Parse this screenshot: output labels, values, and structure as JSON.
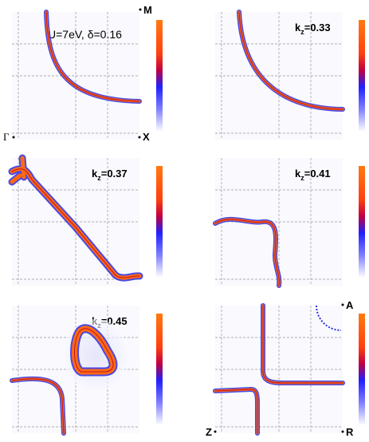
{
  "panels": [
    {
      "label": "U=7eV, δ=0.16"
    },
    {
      "label": {
        "main": "k",
        "sub": "z",
        "rest": "=0.33"
      }
    },
    {
      "label": {
        "main": "k",
        "sub": "z",
        "rest": "=0.37"
      }
    },
    {
      "label": {
        "main": "k",
        "sub": "z",
        "rest": "=0.41"
      }
    },
    {
      "label": {
        "main": "k",
        "sub": "z",
        "rest": "=0.45"
      }
    },
    {
      "label": null
    }
  ],
  "corners": {
    "M": "M",
    "Gamma": "Γ",
    "X": "X",
    "A": "A",
    "Z": "Z",
    "R": "R"
  }
}
